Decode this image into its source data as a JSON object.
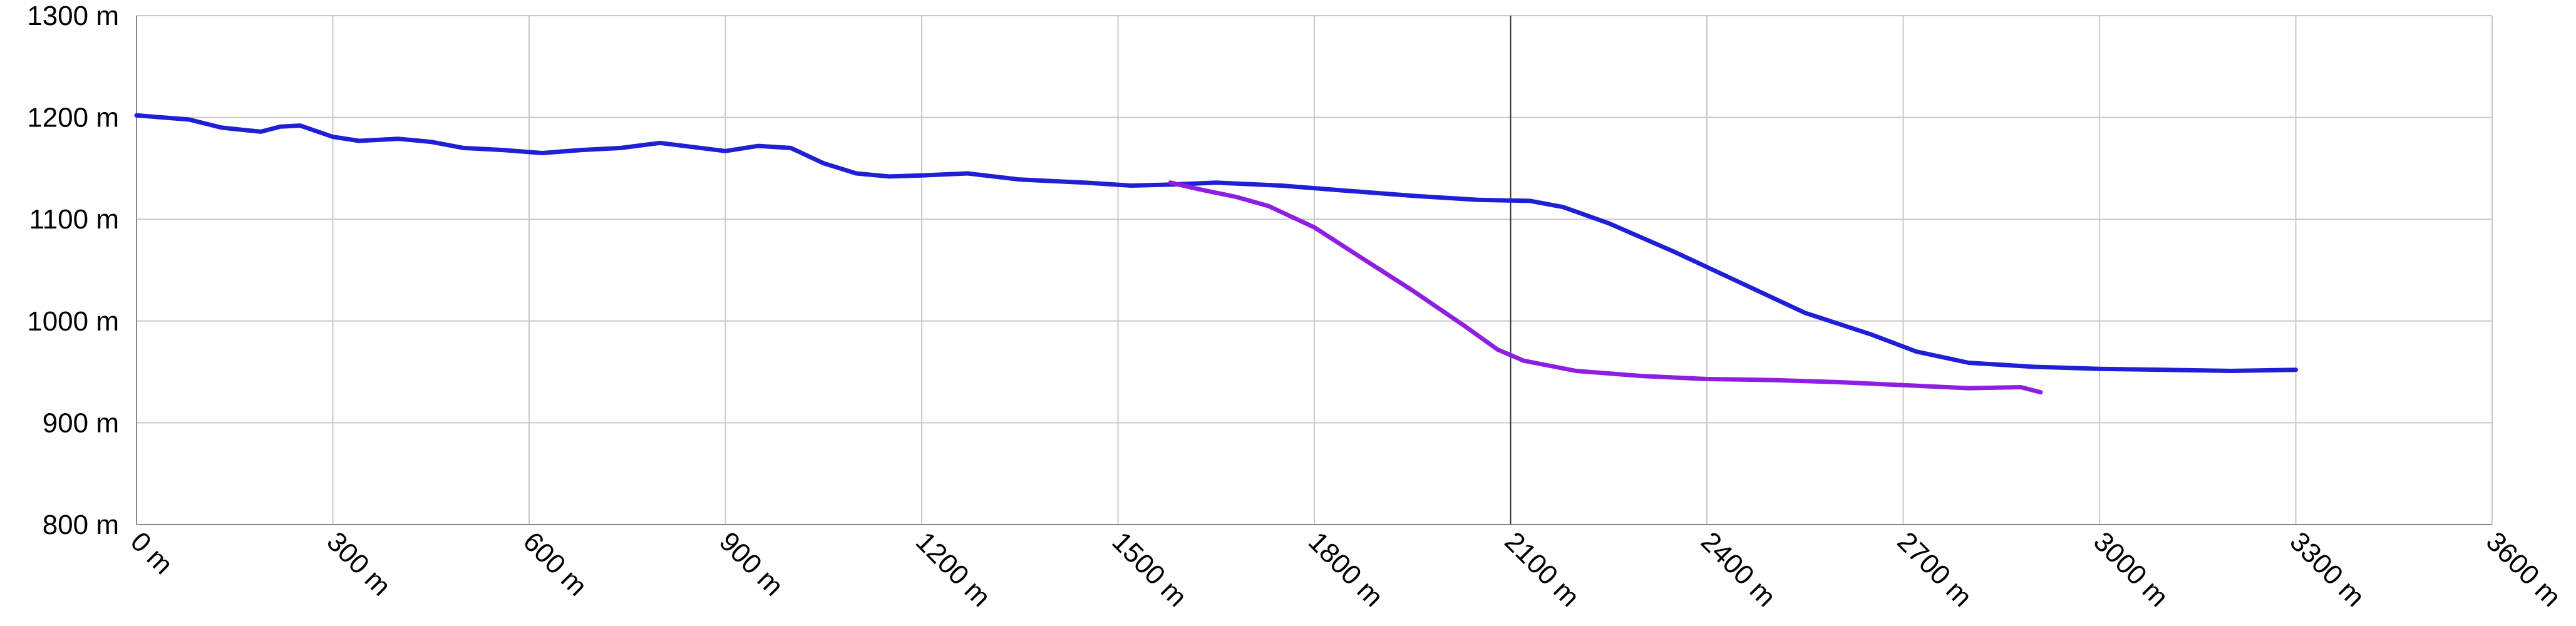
{
  "chart_data": {
    "type": "line",
    "x_unit": "m",
    "y_unit": "m",
    "xlim": [
      0,
      3600
    ],
    "ylim": [
      800,
      1300
    ],
    "x_ticks": [
      0,
      300,
      600,
      900,
      1200,
      1500,
      1800,
      2100,
      2400,
      2700,
      3000,
      3300,
      3600
    ],
    "y_ticks": [
      800,
      900,
      1000,
      1100,
      1200,
      1300
    ],
    "x_tick_labels": [
      "0 m",
      "300 m",
      "600 m",
      "900 m",
      "1200 m",
      "1500 m",
      "1800 m",
      "2100 m",
      "2400 m",
      "2700 m",
      "3000 m",
      "3300 m",
      "3600 m"
    ],
    "y_tick_labels": [
      "800 m",
      "900 m",
      "1000 m",
      "1100 m",
      "1200 m",
      "1300 m"
    ],
    "grid": true,
    "highlight_x": 2100,
    "series": [
      {
        "color": "#1f1fd6",
        "points": [
          [
            0,
            1202
          ],
          [
            40,
            1200
          ],
          [
            80,
            1198
          ],
          [
            130,
            1190
          ],
          [
            190,
            1186
          ],
          [
            220,
            1191
          ],
          [
            250,
            1192
          ],
          [
            300,
            1181
          ],
          [
            340,
            1177
          ],
          [
            400,
            1179
          ],
          [
            450,
            1176
          ],
          [
            500,
            1170
          ],
          [
            560,
            1168
          ],
          [
            620,
            1165
          ],
          [
            680,
            1168
          ],
          [
            740,
            1170
          ],
          [
            800,
            1175
          ],
          [
            850,
            1171
          ],
          [
            900,
            1167
          ],
          [
            950,
            1172
          ],
          [
            1000,
            1170
          ],
          [
            1050,
            1155
          ],
          [
            1100,
            1145
          ],
          [
            1150,
            1142
          ],
          [
            1200,
            1143
          ],
          [
            1270,
            1145
          ],
          [
            1350,
            1139
          ],
          [
            1450,
            1136
          ],
          [
            1520,
            1133
          ],
          [
            1580,
            1134
          ],
          [
            1650,
            1136
          ],
          [
            1750,
            1133
          ],
          [
            1850,
            1128
          ],
          [
            1950,
            1123
          ],
          [
            2050,
            1119
          ],
          [
            2130,
            1118
          ],
          [
            2180,
            1112
          ],
          [
            2250,
            1096
          ],
          [
            2350,
            1068
          ],
          [
            2450,
            1038
          ],
          [
            2550,
            1008
          ],
          [
            2650,
            987
          ],
          [
            2720,
            970
          ],
          [
            2800,
            959
          ],
          [
            2900,
            955
          ],
          [
            3000,
            953
          ],
          [
            3100,
            952
          ],
          [
            3200,
            951
          ],
          [
            3300,
            952
          ]
        ]
      },
      {
        "color": "#8f1fe0",
        "points": [
          [
            1580,
            1136
          ],
          [
            1620,
            1130
          ],
          [
            1680,
            1122
          ],
          [
            1730,
            1113
          ],
          [
            1800,
            1092
          ],
          [
            1870,
            1063
          ],
          [
            1950,
            1030
          ],
          [
            2030,
            995
          ],
          [
            2080,
            972
          ],
          [
            2120,
            961
          ],
          [
            2200,
            951
          ],
          [
            2300,
            946
          ],
          [
            2400,
            943
          ],
          [
            2500,
            942
          ],
          [
            2600,
            940
          ],
          [
            2700,
            937
          ],
          [
            2800,
            934
          ],
          [
            2880,
            935
          ],
          [
            2910,
            930
          ]
        ]
      }
    ]
  }
}
